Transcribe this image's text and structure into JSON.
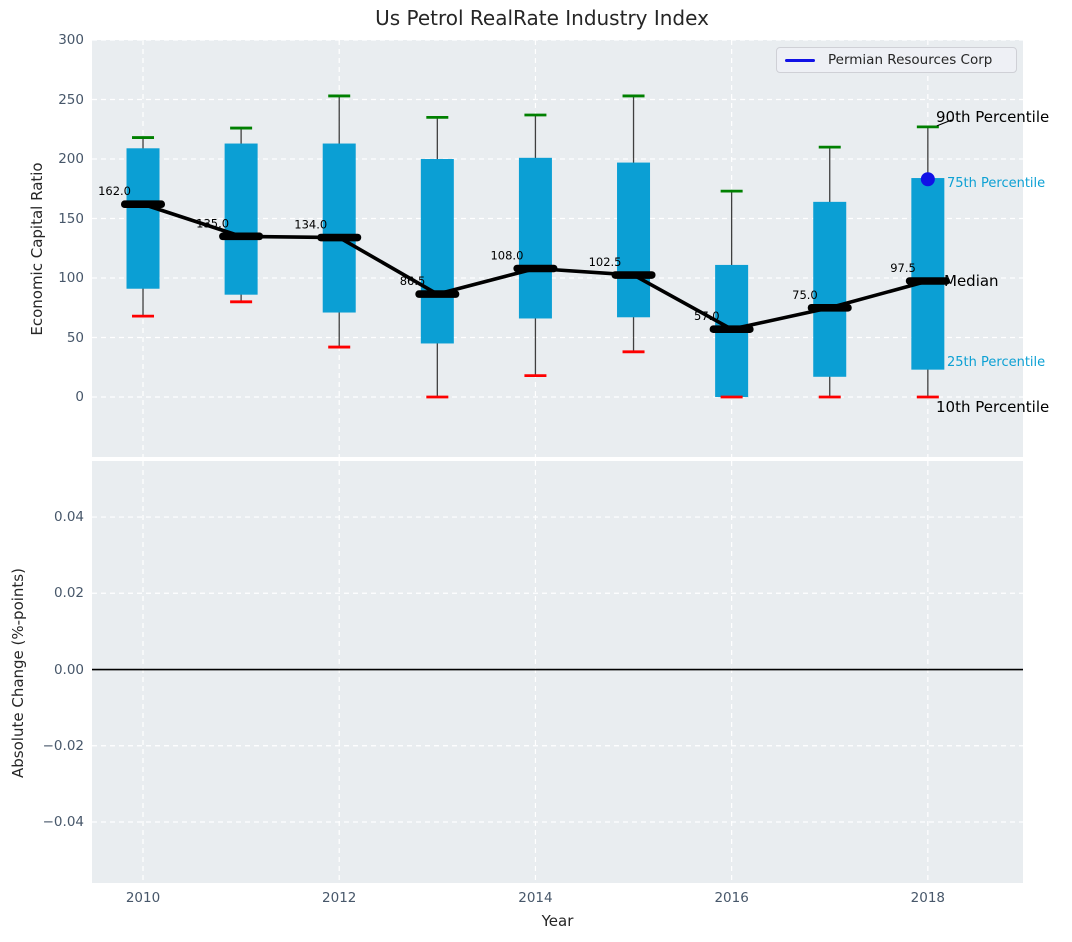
{
  "title": "Us Petrol RealRate Industry Index",
  "legend": {
    "label": "Permian Resources Corp"
  },
  "right_labels": {
    "p90": "90th Percentile",
    "p75": "75th Percentile",
    "median": "Median",
    "p25": "25th Percentile",
    "p10": "10th Percentile"
  },
  "colors": {
    "bar": "#0b9fd4",
    "cyan_text": "#0ea1d4",
    "p90_cap": "#008000",
    "p10_cap": "#fe0000",
    "median": "#000000",
    "company": "#1111e6",
    "axes_bg": "#e9edf0",
    "grid": "#ffffff",
    "tick_text": "#47576a",
    "whisker": "#3f3f3f"
  },
  "chart_data": [
    {
      "type": "box",
      "title": "Us Petrol RealRate Industry Index",
      "ylabel": "Economic Capital Ratio",
      "ylim": [
        -50.4,
        300
      ],
      "yticks": [
        0,
        50,
        100,
        150,
        200,
        250,
        300
      ],
      "ytick_labels": [
        "0",
        "50",
        "100",
        "150",
        "200",
        "250",
        "300"
      ],
      "xlim": [
        2009.48,
        2018.97
      ],
      "xticks": [
        2010,
        2012,
        2014,
        2016,
        2018
      ],
      "grid": true,
      "legend_position": "upper right",
      "categories": [
        2010,
        2011,
        2012,
        2013,
        2014,
        2015,
        2016,
        2017,
        2018
      ],
      "series": [
        {
          "name": "90th Percentile",
          "values": [
            218,
            226,
            253,
            235,
            237,
            253,
            173,
            210,
            227
          ]
        },
        {
          "name": "75th Percentile",
          "values": [
            209,
            213,
            213,
            200,
            201,
            197,
            111,
            164,
            184
          ]
        },
        {
          "name": "Median",
          "values": [
            162.0,
            135.0,
            134.0,
            86.5,
            108.0,
            102.5,
            57.0,
            75.0,
            97.5
          ]
        },
        {
          "name": "25th Percentile",
          "values": [
            91,
            86,
            71,
            45,
            66,
            67,
            0,
            17,
            23
          ]
        },
        {
          "name": "10th Percentile",
          "values": [
            68,
            80,
            42,
            0,
            18,
            38,
            0,
            0,
            0
          ]
        }
      ],
      "median_labels": [
        "162.0",
        "135.0",
        "134.0",
        "86.5",
        "108.0",
        "102.5",
        "57.0",
        "75.0",
        "97.5"
      ],
      "company_point": {
        "name": "Permian Resources Corp",
        "year": 2018,
        "value": 183
      }
    },
    {
      "type": "line",
      "ylabel": "Absolute Change (%-points)",
      "xlabel": "Year",
      "ylim": [
        -0.056,
        0.0547
      ],
      "yticks": [
        0.04,
        0.02,
        0.0,
        -0.02,
        -0.04
      ],
      "ytick_labels": [
        "0.04",
        "0.02",
        "0.00",
        "−0.02",
        "−0.04"
      ],
      "xlim": [
        2009.48,
        2018.97
      ],
      "xticks": [
        2010,
        2012,
        2014,
        2016,
        2018
      ],
      "xtick_labels": [
        "2010",
        "2012",
        "2014",
        "2016",
        "2018"
      ],
      "grid": true,
      "zero_line": 0.0,
      "series": []
    }
  ]
}
